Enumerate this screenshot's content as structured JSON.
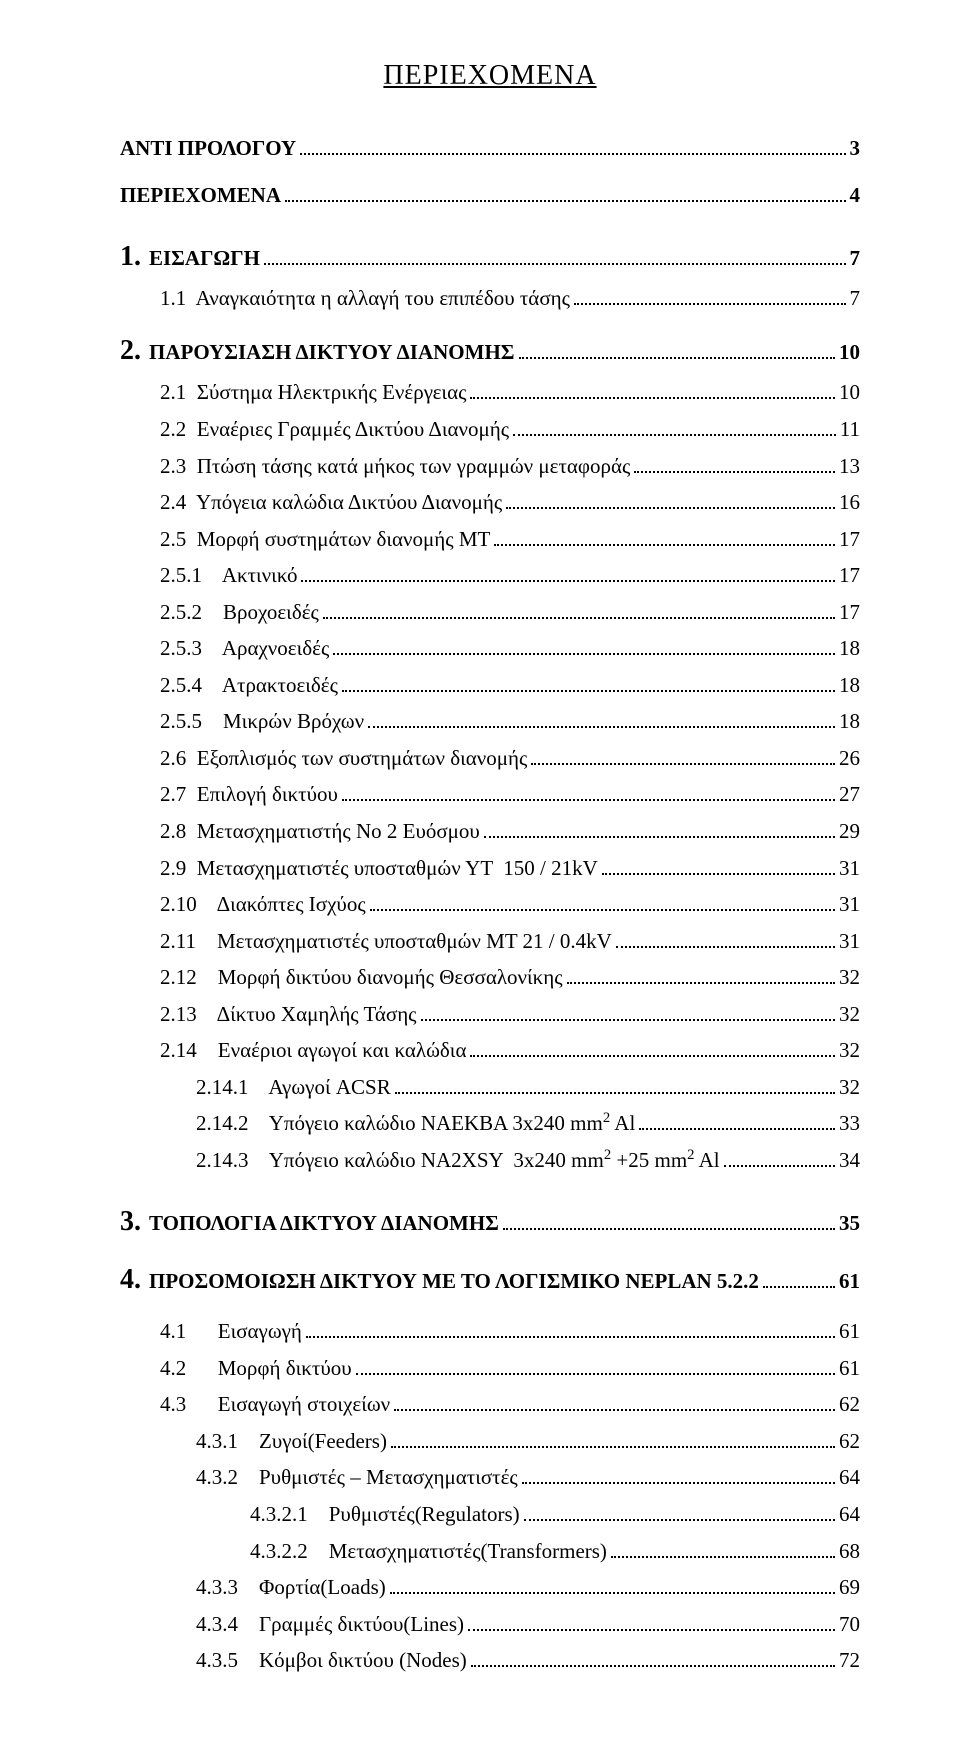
{
  "title": "ΠΕΡΙΕΧΟΜΕΝΑ",
  "entries": [
    {
      "label": "ΑΝΤΙ ΠΡΟΛΟΓΟΥ",
      "page": "3",
      "indent": 0,
      "bold": true,
      "gap": "before"
    },
    {
      "label": "ΠΕΡΙΕΧΟΜΕΝΑ",
      "page": "4",
      "indent": 0,
      "bold": true,
      "gap": "before-small"
    },
    {
      "chapnum": "1.",
      "label": "ΕΙΣΑΓΩΓΗ",
      "page": "7",
      "indent": 0,
      "bold": true,
      "gap": "before"
    },
    {
      "label": "1.1  Αναγκαιότητα η αλλαγή του επιπέδου τάσης",
      "page": "7",
      "indent": 1
    },
    {
      "chapnum": "2.",
      "label": "ΠΑΡΟΥΣΙΑΣΗ ΔΙΚΤΥΟΥ ΔΙΑΝΟΜΗΣ",
      "page": "10",
      "indent": 0,
      "bold": true,
      "gap": "before-small"
    },
    {
      "label": "2.1  Σύστημα Ηλεκτρικής Ενέργειας",
      "page": "10",
      "indent": 1
    },
    {
      "label": "2.2  Εναέριες Γραμμές Δικτύου Διανομής",
      "page": "11",
      "indent": 1
    },
    {
      "label": "2.3  Πτώση τάσης κατά μήκος των γραμμών μεταφοράς",
      "page": "13",
      "indent": 1
    },
    {
      "label": "2.4  Υπόγεια καλώδια Δικτύου Διανομής",
      "page": "16",
      "indent": 1
    },
    {
      "label": "2.5  Μορφή συστημάτων διανομής ΜΤ",
      "page": "17",
      "indent": 1
    },
    {
      "label": "2.5.1    Ακτινικό",
      "page": "17",
      "indent": 1
    },
    {
      "label": "2.5.2    Βροχοειδές",
      "page": "17",
      "indent": 1
    },
    {
      "label": "2.5.3    Αραχνοειδές",
      "page": "18",
      "indent": 1
    },
    {
      "label": "2.5.4    Ατρακτοειδές",
      "page": "18",
      "indent": 1
    },
    {
      "label": "2.5.5    Μικρών Βρόχων",
      "page": "18",
      "indent": 1
    },
    {
      "label": "2.6  Εξοπλισμός των συστημάτων διανομής",
      "page": "26",
      "indent": 1
    },
    {
      "label": "2.7  Επιλογή δικτύου",
      "page": "27",
      "indent": 1
    },
    {
      "label": "2.8  Μετασχηματιστής Νο 2 Ευόσμου",
      "page": "29",
      "indent": 1
    },
    {
      "label": "2.9  Μετασχηματιστές υποσταθμών ΥΤ  150 / 21kV",
      "page": "31",
      "indent": 1
    },
    {
      "label": "2.10    Διακόπτες Ισχύος",
      "page": "31",
      "indent": 1
    },
    {
      "label": "2.11    Μετασχηματιστές υποσταθμών ΜΤ 21 / 0.4kV",
      "page": "31",
      "indent": 1
    },
    {
      "label": "2.12    Μορφή δικτύου διανομής Θεσσαλονίκης",
      "page": "32",
      "indent": 1
    },
    {
      "label": "2.13    Δίκτυο Χαμηλής Τάσης",
      "page": "32",
      "indent": 1
    },
    {
      "label": "2.14    Εναέριοι αγωγοί και καλώδια",
      "page": "32",
      "indent": 1
    },
    {
      "label": "2.14.1    Αγωγοί ACSR",
      "page": "32",
      "indent": 2
    },
    {
      "label": "2.14.2    Υπόγειο καλώδιο NAEKBA 3x240 mm<sup>2</sup> Al",
      "page": "33",
      "indent": 2,
      "html": true
    },
    {
      "label": "2.14.3    Υπόγειο καλώδιο NA2XSY  3x240 mm<sup>2</sup> +25 mm<sup>2</sup> Al",
      "page": "34",
      "indent": 2,
      "html": true
    },
    {
      "chapnum": "3.",
      "label": "ΤΟΠΟΛΟΓΙΑ ΔΙΚΤΥΟΥ ΔΙΑΝΟΜΗΣ",
      "page": "35",
      "indent": 0,
      "bold": true,
      "gap": "before"
    },
    {
      "chapnum": "4.",
      "label": "ΠΡΟΣΟΜΟΙΩΣΗ ΔΙΚΤΥΟΥ ΜΕ ΤΟ ΛΟΓΙΣΜΙΚΟ NEPLAN 5.2.2",
      "page": "61",
      "indent": 0,
      "bold": true,
      "gap": "before-small"
    },
    {
      "label": "4.1      Εισαγωγή",
      "page": "61",
      "indent": 1,
      "gap": "before-small"
    },
    {
      "label": "4.2      Μορφή δικτύου",
      "page": "61",
      "indent": 1
    },
    {
      "label": "4.3      Εισαγωγή στοιχείων",
      "page": "62",
      "indent": 1
    },
    {
      "label": "4.3.1    Ζυγοί(Feeders)",
      "page": "62",
      "indent": 2
    },
    {
      "label": "4.3.2    Ρυθμιστές – Μετασχηματιστές",
      "page": "64",
      "indent": 2
    },
    {
      "label": "4.3.2.1    Ρυθμιστές(Regulators)",
      "page": "64",
      "indent": 3
    },
    {
      "label": "4.3.2.2    Μετασχηματιστές(Transformers)",
      "page": "68",
      "indent": 3
    },
    {
      "label": "4.3.3    Φορτία(Loads)",
      "page": "69",
      "indent": 2
    },
    {
      "label": "4.3.4    Γραμμές δικτύου(Lines)",
      "page": "70",
      "indent": 2
    },
    {
      "label": "4.3.5    Κόμβοι δικτύου (Nodes)",
      "page": "72",
      "indent": 2
    }
  ]
}
